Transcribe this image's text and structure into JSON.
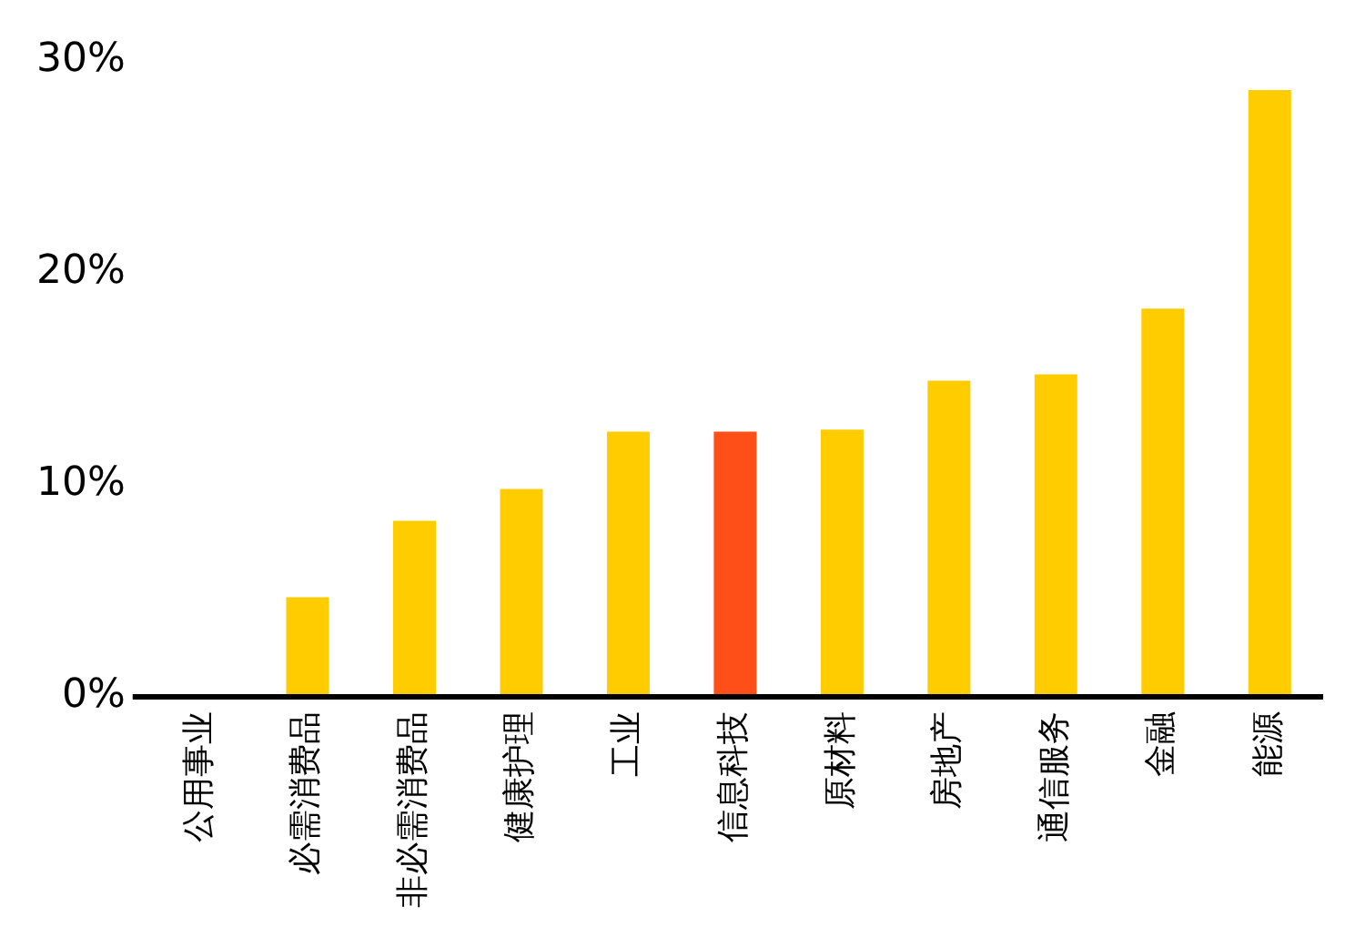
{
  "chart_data": {
    "type": "bar",
    "categories": [
      "公用事业",
      "必需消费品",
      "非必需消费品",
      "健康护理",
      "工业",
      "信息科技",
      "原材料",
      "房地产",
      "通信服务",
      "金融",
      "能源"
    ],
    "values": [
      0,
      4.7,
      8.3,
      9.8,
      12.5,
      12.5,
      12.6,
      14.9,
      15.2,
      18.3,
      28.6
    ],
    "colors": [
      "#ffcc00",
      "#ffcc00",
      "#ffcc00",
      "#ffcc00",
      "#ffcc00",
      "#ff4f19",
      "#ffcc00",
      "#ffcc00",
      "#ffcc00",
      "#ffcc00",
      "#ffcc00"
    ],
    "ylim": [
      0,
      30
    ],
    "yticks": [
      {
        "value": 0,
        "label": "0%"
      },
      {
        "value": 10,
        "label": "10%"
      },
      {
        "value": 20,
        "label": "20%"
      },
      {
        "value": 30,
        "label": "30%"
      }
    ],
    "grid": false,
    "legend": false
  }
}
